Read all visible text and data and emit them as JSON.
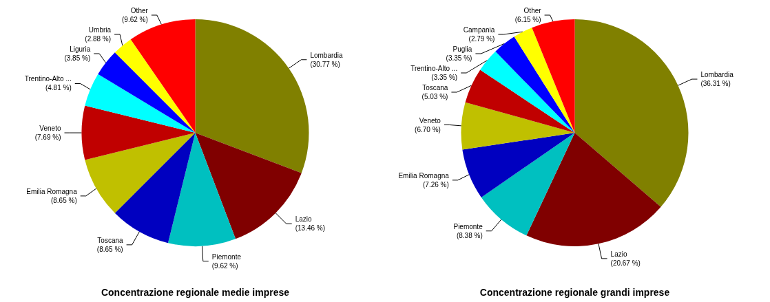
{
  "chart_data": [
    {
      "type": "pie",
      "title": "Concentrazione regionale medie imprese",
      "categories": [
        "Lombardia",
        "Lazio",
        "Piemonte",
        "Toscana",
        "Emilia Romagna",
        "Veneto",
        "Trentino-Alto ...",
        "Liguria",
        "Umbria",
        "Other"
      ],
      "values": [
        30.77,
        13.46,
        9.62,
        8.65,
        8.65,
        7.69,
        4.81,
        3.85,
        2.88,
        9.62
      ],
      "value_labels": [
        "(30.77 %)",
        "(13.46 %)",
        "(9.62 %)",
        "(8.65 %)",
        "(8.65 %)",
        "(7.69 %)",
        "(4.81 %)",
        "(3.85 %)",
        "(2.88 %)",
        "(9.62 %)"
      ],
      "colors": [
        "#808000",
        "#800000",
        "#00c0c0",
        "#0000c0",
        "#c0c000",
        "#c00000",
        "#00ffff",
        "#0000ff",
        "#ffff00",
        "#ff0000"
      ]
    },
    {
      "type": "pie",
      "title": "Concentrazione regionale grandi imprese",
      "categories": [
        "Lombardia",
        "Lazio",
        "Piemonte",
        "Emilia Romagna",
        "Veneto",
        "Toscana",
        "Trentino-Alto ...",
        "Puglia",
        "Campania",
        "Other"
      ],
      "values": [
        36.31,
        20.67,
        8.38,
        7.26,
        6.7,
        5.03,
        3.35,
        3.35,
        2.79,
        6.15
      ],
      "value_labels": [
        "(36.31 %)",
        "(20.67 %)",
        "(8.38 %)",
        "(7.26 %)",
        "(6.70 %)",
        "(5.03 %)",
        "(3.35 %)",
        "(3.35 %)",
        "(2.79 %)",
        "(6.15 %)"
      ],
      "colors": [
        "#808000",
        "#800000",
        "#00c0c0",
        "#0000c0",
        "#c0c000",
        "#c00000",
        "#00ffff",
        "#0000ff",
        "#ffff00",
        "#ff0000"
      ]
    }
  ]
}
